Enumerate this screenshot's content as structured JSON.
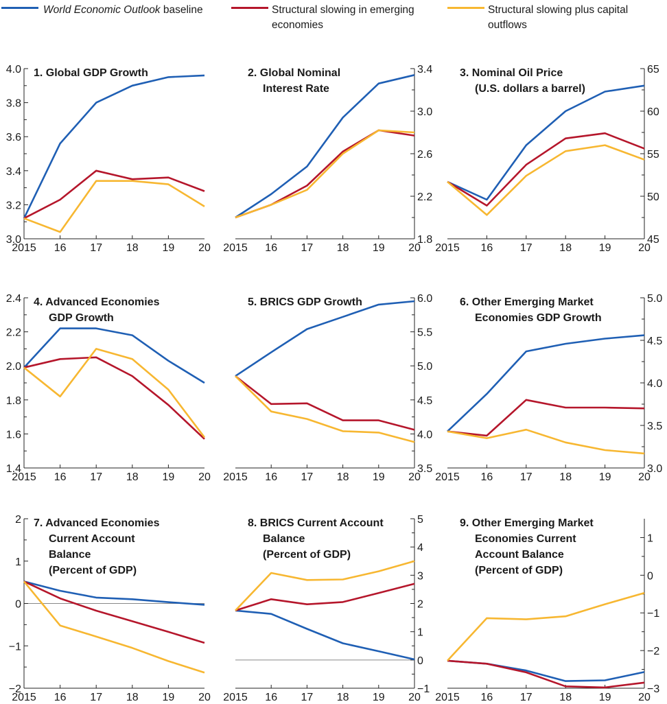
{
  "legend": {
    "items": [
      {
        "label_em": "World Economic Outlook",
        "label": " baseline",
        "color": "#1f5fb4"
      },
      {
        "label": "Structural slowing in emerging economies",
        "color": "#b5162b"
      },
      {
        "label": "Structural slowing plus capital outflows",
        "color": "#f7b731"
      }
    ]
  },
  "chart_data": [
    {
      "type": "line",
      "title": [
        "1. Global GDP Growth"
      ],
      "x": [
        "2015",
        "16",
        "17",
        "18",
        "19",
        "20"
      ],
      "axis_side": "left",
      "ylim": [
        3.0,
        4.0
      ],
      "yticks": [
        3.0,
        3.2,
        3.4,
        3.6,
        3.8,
        4.0
      ],
      "ytick_labels": [
        "3.0",
        "3.2",
        "3.4",
        "3.6",
        "3.8",
        "4.0"
      ],
      "series": [
        {
          "values": [
            3.12,
            3.56,
            3.8,
            3.9,
            3.95,
            3.96
          ]
        },
        {
          "values": [
            3.12,
            3.23,
            3.4,
            3.35,
            3.36,
            3.28
          ]
        },
        {
          "values": [
            3.12,
            3.04,
            3.34,
            3.34,
            3.32,
            3.19
          ]
        }
      ]
    },
    {
      "type": "line",
      "title": [
        "2. Global Nominal",
        "Interest Rate"
      ],
      "x": [
        "2015",
        "16",
        "17",
        "18",
        "19",
        "20"
      ],
      "axis_side": "right",
      "ylim": [
        1.8,
        3.4
      ],
      "yticks": [
        1.8,
        2.2,
        2.6,
        3.0,
        3.4
      ],
      "ytick_labels": [
        "1.8",
        "2.2",
        "2.6",
        "3.0",
        "3.4"
      ],
      "series": [
        {
          "values": [
            2.0,
            2.22,
            2.48,
            2.94,
            3.26,
            3.34
          ]
        },
        {
          "values": [
            2.0,
            2.12,
            2.3,
            2.62,
            2.82,
            2.77
          ]
        },
        {
          "values": [
            2.0,
            2.12,
            2.26,
            2.6,
            2.82,
            2.8
          ]
        }
      ]
    },
    {
      "type": "line",
      "title": [
        "3. Nominal Oil Price",
        "(U.S. dollars a barrel)"
      ],
      "x": [
        "2015",
        "16",
        "17",
        "18",
        "19",
        "20"
      ],
      "axis_side": "right",
      "ylim": [
        45,
        65
      ],
      "yticks": [
        45,
        50,
        55,
        60,
        65
      ],
      "ytick_labels": [
        "45",
        "50",
        "55",
        "60",
        "65"
      ],
      "series": [
        {
          "values": [
            51.7,
            49.6,
            56.0,
            60.0,
            62.3,
            63.0
          ]
        },
        {
          "values": [
            51.7,
            48.9,
            53.7,
            56.8,
            57.4,
            55.6
          ]
        },
        {
          "values": [
            51.7,
            47.8,
            52.4,
            55.3,
            56.0,
            54.3
          ]
        }
      ]
    },
    {
      "type": "line",
      "title": [
        "4. Advanced Economies",
        "GDP Growth"
      ],
      "x": [
        "2015",
        "16",
        "17",
        "18",
        "19",
        "20"
      ],
      "axis_side": "left",
      "ylim": [
        1.4,
        2.4
      ],
      "yticks": [
        1.4,
        1.6,
        1.8,
        2.0,
        2.2,
        2.4
      ],
      "ytick_labels": [
        "1.4",
        "1.6",
        "1.8",
        "2.0",
        "2.2",
        "2.4"
      ],
      "series": [
        {
          "values": [
            1.99,
            2.22,
            2.22,
            2.18,
            2.03,
            1.9
          ]
        },
        {
          "values": [
            1.99,
            2.04,
            2.05,
            1.94,
            1.77,
            1.57
          ]
        },
        {
          "values": [
            1.99,
            1.82,
            2.1,
            2.04,
            1.86,
            1.58
          ]
        }
      ]
    },
    {
      "type": "line",
      "title": [
        "5. BRICS GDP Growth"
      ],
      "x": [
        "2015",
        "16",
        "17",
        "18",
        "19",
        "20"
      ],
      "axis_side": "right",
      "ylim": [
        3.5,
        6.0
      ],
      "yticks": [
        3.5,
        4.0,
        4.5,
        5.0,
        5.5,
        6.0
      ],
      "ytick_labels": [
        "3.5",
        "4.0",
        "4.5",
        "5.0",
        "5.5",
        "6.0"
      ],
      "series": [
        {
          "values": [
            4.85,
            5.2,
            5.54,
            5.72,
            5.9,
            5.95
          ]
        },
        {
          "values": [
            4.85,
            4.44,
            4.45,
            4.2,
            4.2,
            4.06
          ]
        },
        {
          "values": [
            4.85,
            4.33,
            4.22,
            4.04,
            4.02,
            3.88
          ]
        }
      ]
    },
    {
      "type": "line",
      "title": [
        "6. Other Emerging Market",
        "Economies GDP Growth"
      ],
      "x": [
        "2015",
        "16",
        "17",
        "18",
        "19",
        "20"
      ],
      "axis_side": "right",
      "ylim": [
        3.0,
        5.0
      ],
      "yticks": [
        3.0,
        3.5,
        4.0,
        4.5,
        5.0
      ],
      "ytick_labels": [
        "3.0",
        "3.5",
        "4.0",
        "4.5",
        "5.0"
      ],
      "series": [
        {
          "values": [
            3.43,
            3.87,
            4.37,
            4.46,
            4.52,
            4.56
          ]
        },
        {
          "values": [
            3.43,
            3.38,
            3.8,
            3.71,
            3.71,
            3.7
          ]
        },
        {
          "values": [
            3.43,
            3.35,
            3.45,
            3.3,
            3.21,
            3.17
          ]
        }
      ]
    },
    {
      "type": "line",
      "title": [
        "7. Advanced Economies",
        "Current Account",
        "Balance",
        "(Percent of GDP)"
      ],
      "x": [
        "2015",
        "16",
        "17",
        "18",
        "19",
        "20"
      ],
      "axis_side": "left",
      "ylim": [
        -2,
        2
      ],
      "yticks": [
        -2,
        -1,
        0,
        1,
        2
      ],
      "ytick_labels": [
        "−2",
        "−1",
        "0",
        "1",
        "2"
      ],
      "zero_line": true,
      "series": [
        {
          "values": [
            0.52,
            0.3,
            0.14,
            0.1,
            0.03,
            -0.03
          ]
        },
        {
          "values": [
            0.52,
            0.12,
            -0.17,
            -0.42,
            -0.67,
            -0.93
          ]
        },
        {
          "values": [
            0.52,
            -0.52,
            -0.78,
            -1.05,
            -1.36,
            -1.63
          ]
        }
      ]
    },
    {
      "type": "line",
      "title": [
        "8. BRICS Current Account",
        "Balance",
        "(Percent of GDP)"
      ],
      "x": [
        "2015",
        "16",
        "17",
        "18",
        "19",
        "20"
      ],
      "axis_side": "right",
      "ylim": [
        -1,
        5
      ],
      "yticks": [
        -1,
        0,
        1,
        2,
        3,
        4,
        5
      ],
      "ytick_labels": [
        "−1",
        "0",
        "1",
        "2",
        "3",
        "4",
        "5"
      ],
      "zero_line": true,
      "series": [
        {
          "values": [
            1.75,
            1.63,
            1.1,
            0.59,
            0.31,
            0.02
          ]
        },
        {
          "values": [
            1.75,
            2.15,
            1.97,
            2.05,
            2.37,
            2.7
          ]
        },
        {
          "values": [
            1.75,
            3.08,
            2.83,
            2.85,
            3.14,
            3.5
          ]
        }
      ]
    },
    {
      "type": "line",
      "title": [
        "9. Other Emerging Market",
        "Economies Current",
        "Account Balance",
        "(Percent of GDP)"
      ],
      "x": [
        "2015",
        "16",
        "17",
        "18",
        "19",
        "20"
      ],
      "axis_side": "right",
      "ylim": [
        -3,
        1.5
      ],
      "yticks": [
        -3,
        -2,
        -1,
        0,
        1
      ],
      "ytick_labels": [
        "−3",
        "−2",
        "−1",
        "0",
        "1"
      ],
      "series": [
        {
          "values": [
            -2.27,
            -2.35,
            -2.53,
            -2.81,
            -2.79,
            -2.57
          ]
        },
        {
          "values": [
            -2.27,
            -2.35,
            -2.58,
            -2.95,
            -2.98,
            -2.85
          ]
        },
        {
          "values": [
            -2.27,
            -1.14,
            -1.17,
            -1.09,
            -0.77,
            -0.47
          ]
        }
      ]
    }
  ]
}
